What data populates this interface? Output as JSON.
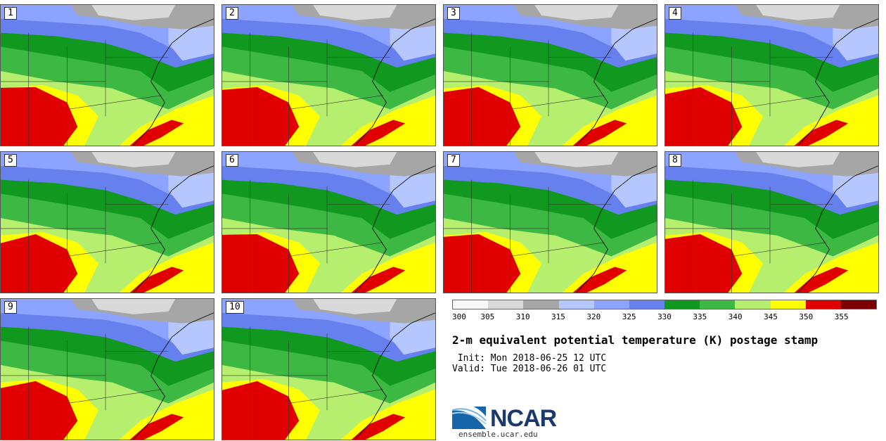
{
  "stamps": [
    {
      "label": "1"
    },
    {
      "label": "2"
    },
    {
      "label": "3"
    },
    {
      "label": "4"
    },
    {
      "label": "5"
    },
    {
      "label": "6"
    },
    {
      "label": "7"
    },
    {
      "label": "8"
    },
    {
      "label": "9"
    },
    {
      "label": "10"
    }
  ],
  "colorbar": {
    "colors": [
      "#f7f7f7",
      "#d9d9d9",
      "#a6a6a6",
      "#b6c6ff",
      "#8ca4ff",
      "#6680ee",
      "#11991f",
      "#3db843",
      "#b6ef6d",
      "#ffff00",
      "#e00000",
      "#7d0000"
    ],
    "ticks": [
      "300",
      "305",
      "310",
      "315",
      "320",
      "325",
      "330",
      "335",
      "340",
      "345",
      "350",
      "355"
    ]
  },
  "title": "2-m equivalent potential temperature (K) postage stamp",
  "init": " Init: Mon 2018-06-25 12 UTC",
  "valid": "Valid: Tue 2018-06-26 01 UTC",
  "logo": {
    "text": "NCAR",
    "url": "ensemble.ucar.edu"
  }
}
